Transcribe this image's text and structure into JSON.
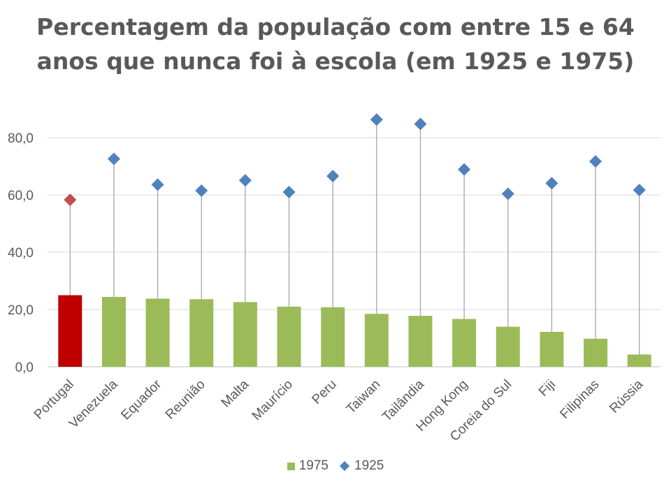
{
  "title_line1": "Percentagem da população com entre 15 e 64",
  "title_line2": "anos que nunca foi à escola (em 1925 e 1975)",
  "colors": {
    "bar_1975": "#9BBB59",
    "bar_highlight": "#C00000",
    "marker_1925": "#4F81BD",
    "marker_highlight": "#C0504D",
    "stem": "#A6A6A6",
    "grid": "#D9D9D9",
    "text": "#595959"
  },
  "legend": {
    "series_1975": "1975",
    "series_1925": "1925"
  },
  "chart_data": {
    "type": "bar",
    "title": "Percentagem da população com entre 15 e 64 anos que nunca foi à escola (em 1925 e 1975)",
    "categories": [
      "Portugal",
      "Venezuela",
      "Equador",
      "Reunião",
      "Malta",
      "Maurício",
      "Peru",
      "Taiwan",
      "Tailândia",
      "Hong Kong",
      "Coreia do Sul",
      "Fiji",
      "Filipinas",
      "Rússia"
    ],
    "series": [
      {
        "name": "1975",
        "mark": "bar",
        "values": [
          25.0,
          24.4,
          23.8,
          23.6,
          22.6,
          21.0,
          20.8,
          18.5,
          17.8,
          16.7,
          14.0,
          12.2,
          9.8,
          4.3
        ]
      },
      {
        "name": "1925",
        "mark": "diamond",
        "values": [
          58.3,
          72.6,
          63.6,
          61.5,
          65.1,
          61.0,
          66.6,
          86.3,
          84.8,
          68.9,
          60.4,
          64.1,
          71.7,
          61.7
        ]
      }
    ],
    "highlight_category": "Portugal",
    "yticks": [
      "0,0",
      "20,0",
      "40,0",
      "60,0",
      "80,0"
    ],
    "ylim": [
      0,
      90
    ],
    "grid": true,
    "legend_position": "bottom"
  }
}
